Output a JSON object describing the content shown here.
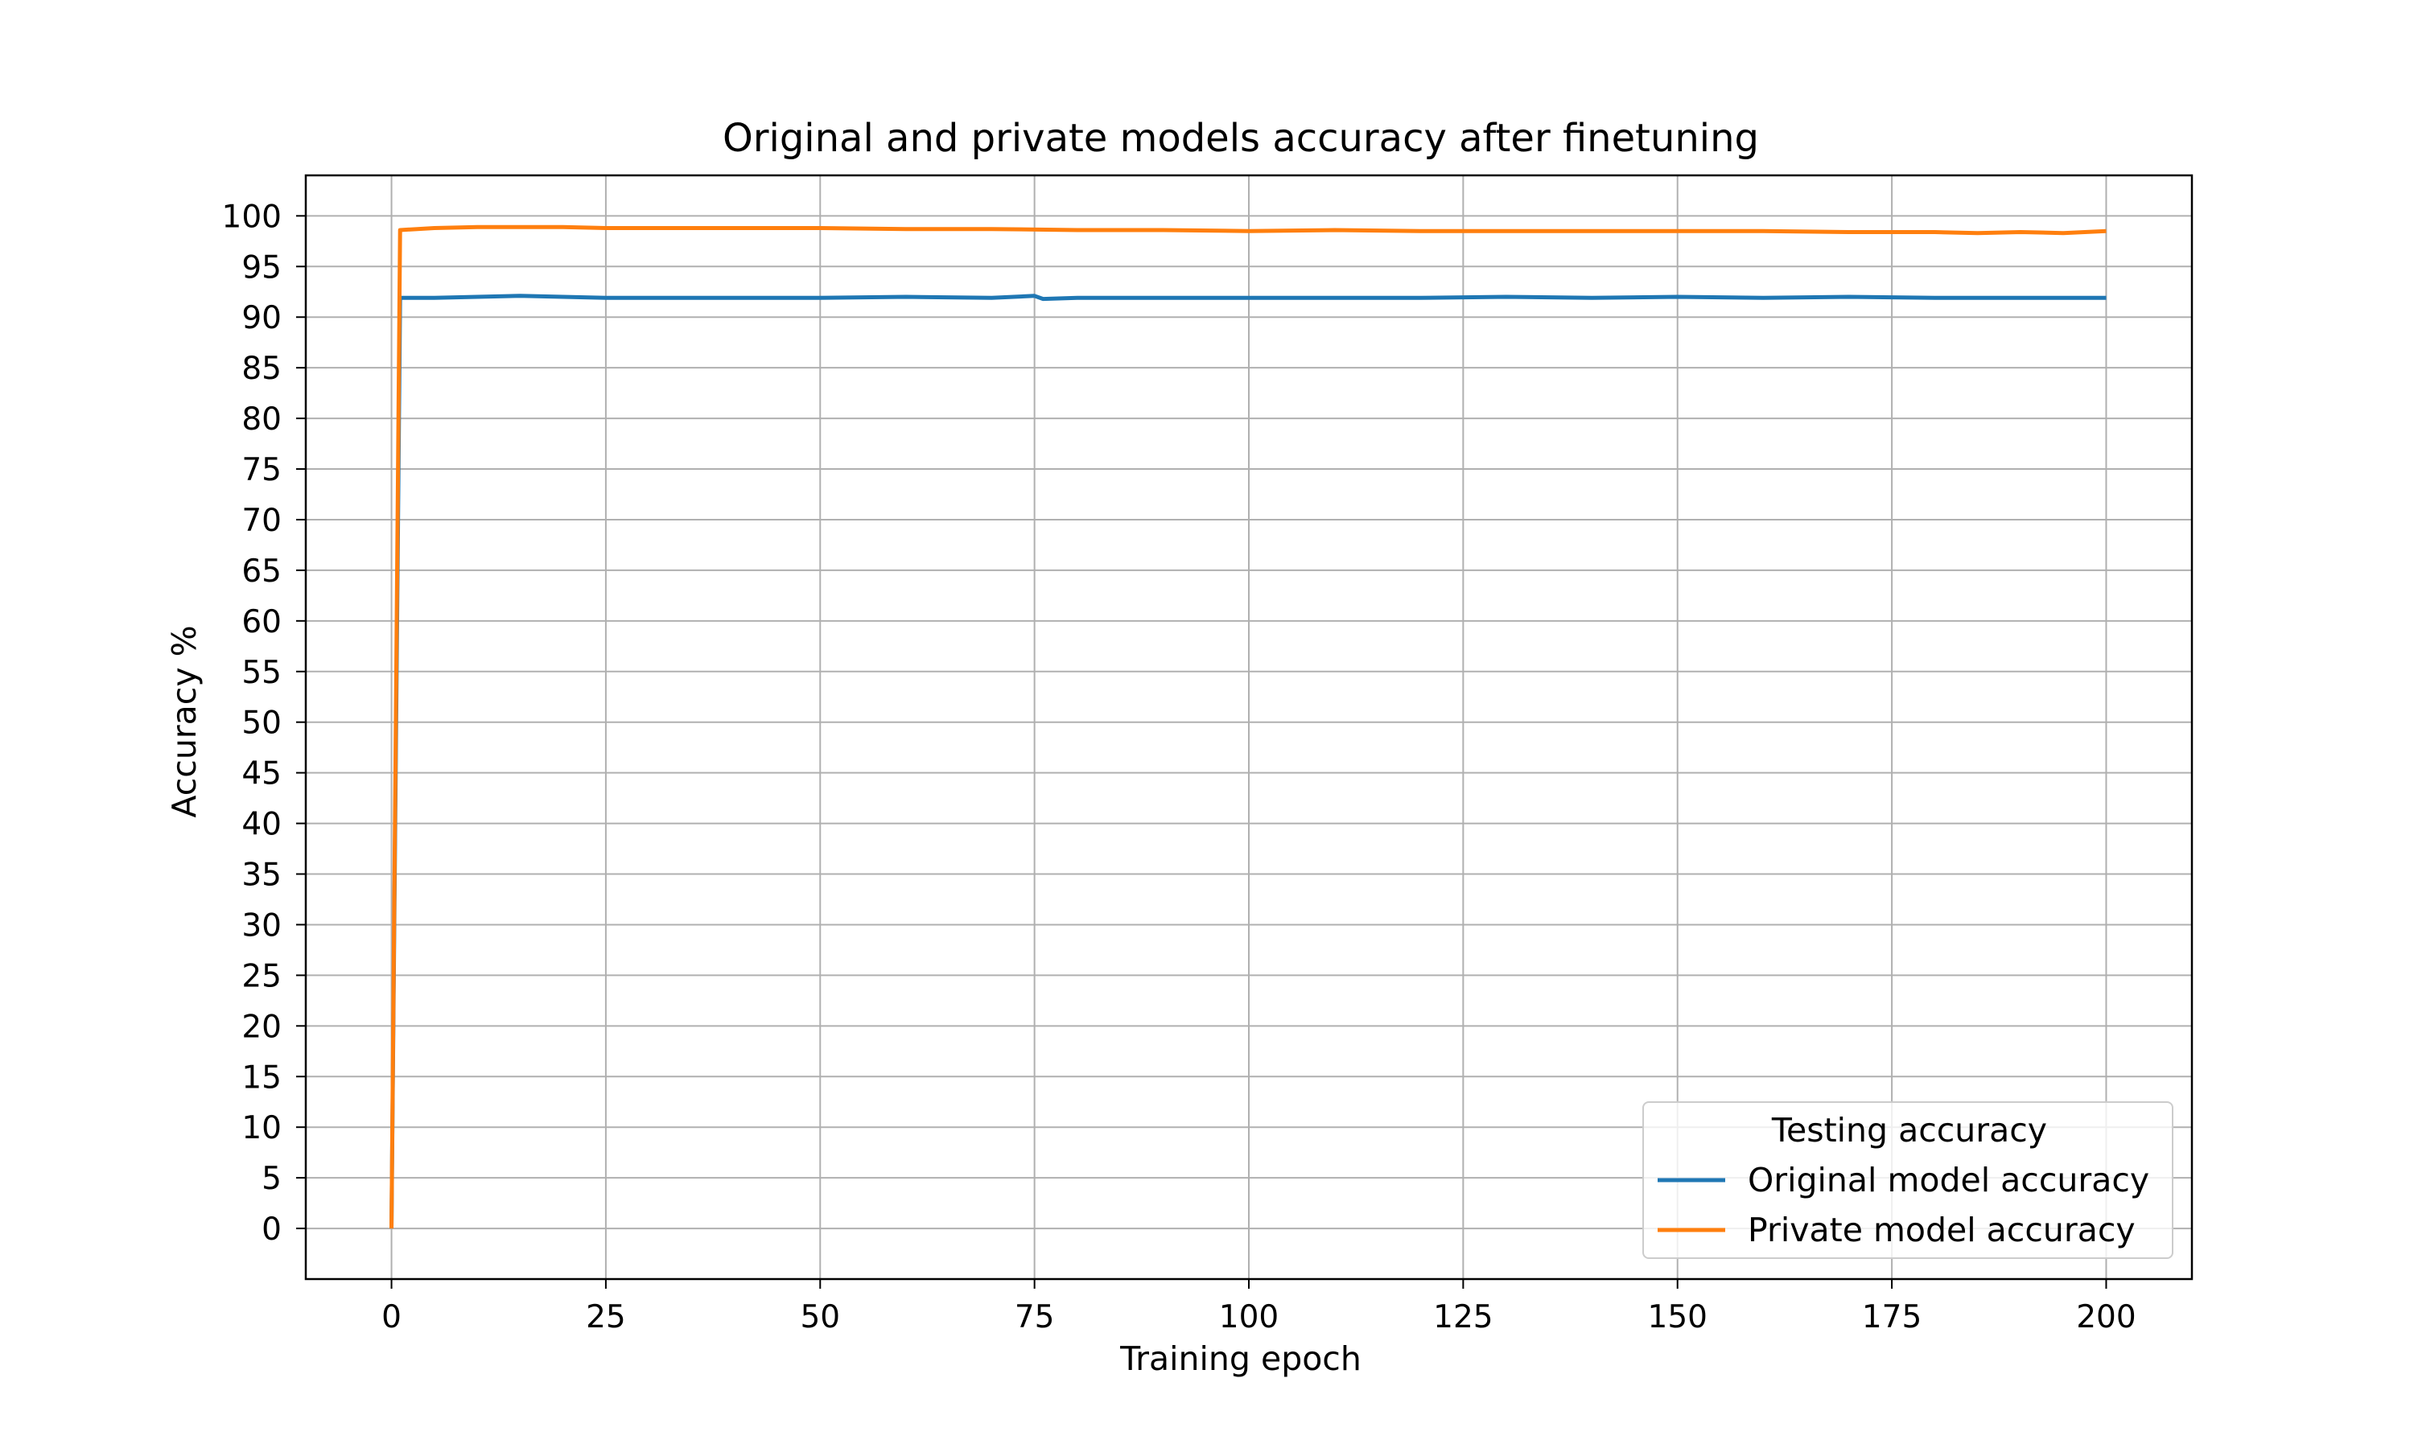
{
  "chart_data": {
    "type": "line",
    "title": "Original and private models accuracy after finetuning",
    "xlabel": "Training epoch",
    "ylabel": "Accuracy %",
    "xlim": [
      -10,
      210
    ],
    "ylim": [
      -5,
      104
    ],
    "xticks": [
      0,
      25,
      50,
      75,
      100,
      125,
      150,
      175,
      200
    ],
    "yticks": [
      0,
      5,
      10,
      15,
      20,
      25,
      30,
      35,
      40,
      45,
      50,
      55,
      60,
      65,
      70,
      75,
      80,
      85,
      90,
      95,
      100
    ],
    "grid": true,
    "legend": {
      "title": "Testing accuracy",
      "placement": "lower-right"
    },
    "series": [
      {
        "name": "Original model accuracy",
        "color": "#1f77b4",
        "x": [
          0,
          1,
          5,
          10,
          15,
          20,
          25,
          30,
          40,
          50,
          60,
          70,
          75,
          76,
          80,
          90,
          100,
          110,
          120,
          130,
          140,
          150,
          160,
          170,
          180,
          190,
          200
        ],
        "y": [
          0,
          91.9,
          91.9,
          92.0,
          92.1,
          92.0,
          91.9,
          91.9,
          91.9,
          91.9,
          92.0,
          91.9,
          92.1,
          91.8,
          91.9,
          91.9,
          91.9,
          91.9,
          91.9,
          92.0,
          91.9,
          92.0,
          91.9,
          92.0,
          91.9,
          91.9,
          91.9
        ]
      },
      {
        "name": "Private model accuracy",
        "color": "#ff7f0e",
        "x": [
          0,
          1,
          5,
          10,
          15,
          20,
          25,
          30,
          40,
          50,
          60,
          70,
          80,
          90,
          100,
          110,
          120,
          130,
          140,
          150,
          160,
          170,
          180,
          185,
          190,
          195,
          200
        ],
        "y": [
          0,
          98.6,
          98.8,
          98.9,
          98.9,
          98.9,
          98.8,
          98.8,
          98.8,
          98.8,
          98.7,
          98.7,
          98.6,
          98.6,
          98.5,
          98.6,
          98.5,
          98.5,
          98.5,
          98.5,
          98.5,
          98.4,
          98.4,
          98.3,
          98.4,
          98.3,
          98.5
        ]
      }
    ]
  }
}
